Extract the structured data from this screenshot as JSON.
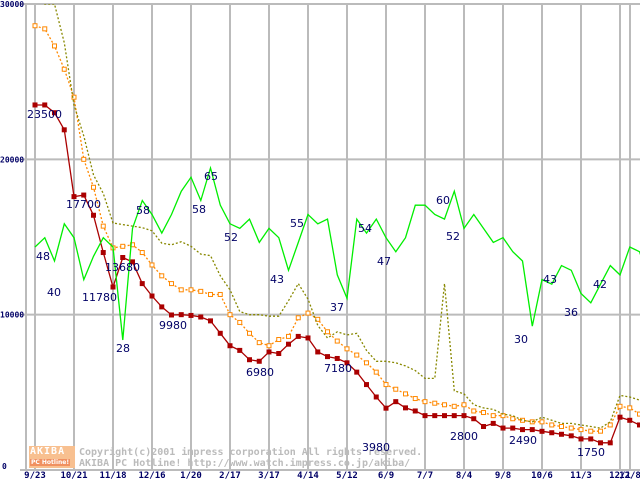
{
  "chart_data": {
    "type": "line",
    "title": "",
    "xlabel": "",
    "ylabel": "",
    "ylim": [
      0,
      30000
    ],
    "y2lim": [
      0,
      100
    ],
    "grid": true,
    "yticks": [
      "0",
      "10000",
      "20000",
      "30000"
    ],
    "xticks": [
      "9/23",
      "10/21",
      "11/18",
      "12/16",
      "1/20",
      "2/17",
      "3/17",
      "4/14",
      "5/12",
      "6/9",
      "7/7",
      "8/4",
      "9/8",
      "10/6",
      "11/3",
      "12/1",
      "12/8"
    ],
    "series": [
      {
        "name": "price-red",
        "color": "#aa0000",
        "style": "solid-square",
        "values": [
          23500,
          23500,
          23000,
          21900,
          17600,
          17700,
          16400,
          14000,
          11780,
          13680,
          13400,
          12000,
          11200,
          10500,
          9980,
          10000,
          9950,
          9850,
          9600,
          8800,
          8000,
          7700,
          7100,
          7000,
          7600,
          7500,
          8100,
          8600,
          8500,
          7600,
          7300,
          7180,
          6900,
          6300,
          5500,
          4700,
          3980,
          4400,
          4000,
          3800,
          3500,
          3500,
          3500,
          3500,
          3500,
          3300,
          2800,
          3000,
          2700,
          2700,
          2600,
          2600,
          2490,
          2400,
          2300,
          2200,
          2000,
          2000,
          1750,
          1750,
          3400,
          3200,
          2900,
          2700
        ]
      },
      {
        "name": "price-orange",
        "color": "#ff8800",
        "style": "dotted-square",
        "values": [
          28600,
          28400,
          27300,
          25800,
          24000,
          20000,
          18200,
          15700,
          14300,
          14400,
          14500,
          14000,
          13200,
          12500,
          12000,
          11600,
          11600,
          11500,
          11300,
          11300,
          10000,
          9500,
          8800,
          8200,
          8000,
          8400,
          8600,
          9800,
          10100,
          9700,
          8900,
          8300,
          7800,
          7400,
          6900,
          6300,
          5500,
          5200,
          4900,
          4600,
          4400,
          4300,
          4200,
          4100,
          4200,
          3800,
          3700,
          3500,
          3500,
          3300,
          3200,
          3100,
          3100,
          2900,
          2800,
          2700,
          2600,
          2500,
          2500,
          2900,
          4100,
          4000,
          3600,
          3400
        ]
      },
      {
        "name": "price-olive",
        "color": "#888800",
        "style": "dotted",
        "values": [
          32000,
          30000,
          30000,
          27500,
          23500,
          21500,
          19000,
          17800,
          15900,
          15800,
          15700,
          15600,
          15400,
          14600,
          14500,
          14700,
          14400,
          13900,
          13800,
          12500,
          11600,
          10200,
          10000,
          10000,
          9900,
          9900,
          10900,
          12000,
          11000,
          9300,
          8500,
          8900,
          8700,
          8800,
          7700,
          7000,
          7000,
          6900,
          6700,
          6400,
          5900,
          5900,
          12000,
          5100,
          4900,
          4200,
          4000,
          3900,
          3600,
          3500,
          3200,
          3100,
          3400,
          3200,
          3000,
          3000,
          2900,
          2800,
          2700,
          3100,
          4800,
          4700,
          4500,
          4100
        ]
      },
      {
        "name": "count-green",
        "color": "#00ee00",
        "style": "solid",
        "axis": "right",
        "values": [
          48,
          50,
          45,
          53,
          50,
          41,
          46,
          50,
          48,
          28,
          52,
          58,
          55,
          51,
          55,
          60,
          63,
          58,
          65,
          57,
          53,
          52,
          54,
          49,
          52,
          50,
          43,
          49,
          55,
          53,
          54,
          42,
          37,
          54,
          51,
          54,
          50,
          47,
          50,
          57,
          57,
          55,
          54,
          60,
          52,
          55,
          52,
          49,
          50,
          47,
          45,
          31,
          41,
          40,
          44,
          43,
          38,
          36,
          40,
          44,
          42,
          48,
          47,
          41
        ]
      }
    ],
    "annotations": [
      {
        "text": "23500"
      },
      {
        "text": "17700"
      },
      {
        "text": "11780"
      },
      {
        "text": "13680"
      },
      {
        "text": "9980"
      },
      {
        "text": "6980"
      },
      {
        "text": "7180"
      },
      {
        "text": "3980"
      },
      {
        "text": "2800"
      },
      {
        "text": "2490"
      },
      {
        "text": "1750"
      },
      {
        "text": "48"
      },
      {
        "text": "40"
      },
      {
        "text": "28"
      },
      {
        "text": "58"
      },
      {
        "text": "58"
      },
      {
        "text": "65"
      },
      {
        "text": "52"
      },
      {
        "text": "43"
      },
      {
        "text": "55"
      },
      {
        "text": "37"
      },
      {
        "text": "54"
      },
      {
        "text": "47"
      },
      {
        "text": "60"
      },
      {
        "text": "52"
      },
      {
        "text": "30"
      },
      {
        "text": "43"
      },
      {
        "text": "36"
      },
      {
        "text": "42"
      }
    ]
  },
  "watermark": {
    "logo_top": "AKIBA",
    "logo_bottom": "PC Hotline!",
    "line1": "Copyright(c)2001 impress corporation All rights reserved.",
    "line2": "AKIBA PC Hotline!  http://www.watch.impress.co.jp/akiba/"
  }
}
